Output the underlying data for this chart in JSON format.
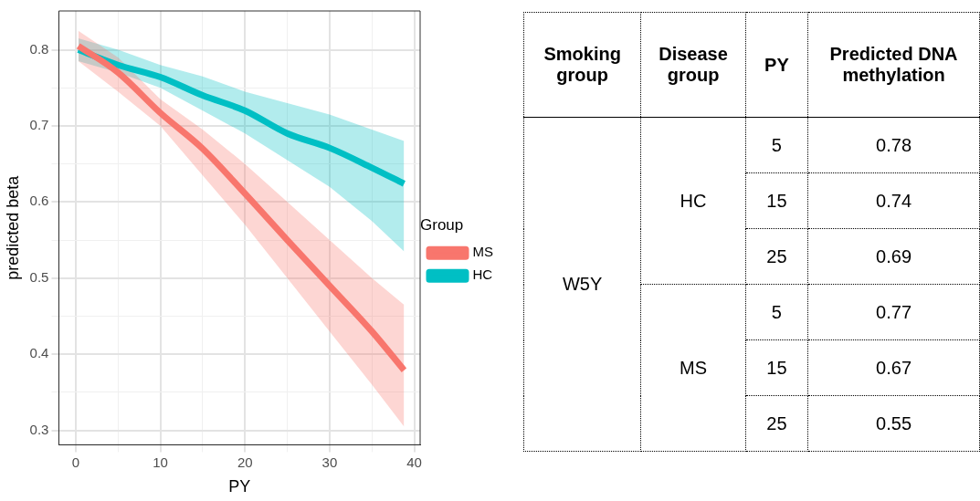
{
  "chart_data": [
    {
      "type": "line",
      "xlabel": "PY",
      "ylabel": "predicted beta",
      "legend_title": "Group",
      "legend": "right",
      "grid": true,
      "marker": "none",
      "line_style": "solid",
      "xlim": [
        -2,
        40.7
      ],
      "xticks": [
        0,
        {
          "value": 5,
          "label": null
        },
        10,
        {
          "value": 15,
          "label": null
        },
        20,
        {
          "value": 25,
          "label": null
        },
        30,
        {
          "value": 35,
          "label": null
        },
        40
      ],
      "ylim": [
        0.281,
        0.851
      ],
      "yticks": [
        0.3,
        {
          "value": 0.35,
          "label": null
        },
        0.4,
        {
          "value": 0.45,
          "label": null
        },
        0.5,
        {
          "value": 0.55,
          "label": null
        },
        0.6,
        {
          "value": 0.65,
          "label": null
        },
        0.7,
        {
          "value": 0.75,
          "label": null
        },
        0.8
      ],
      "series": [
        {
          "name": "MS",
          "color": "#f8766d",
          "x": [
            0.3,
            5,
            10,
            15,
            20,
            25,
            30,
            35,
            38.8
          ],
          "values": [
            0.805,
            0.77,
            0.717,
            0.67,
            0.611,
            0.55,
            0.49,
            0.43,
            0.379
          ],
          "lower": [
            0.785,
            0.745,
            0.7,
            0.635,
            0.57,
            0.5,
            0.43,
            0.36,
            0.305
          ],
          "upper": [
            0.825,
            0.79,
            0.735,
            0.695,
            0.65,
            0.6,
            0.55,
            0.5,
            0.465
          ]
        },
        {
          "name": "HC",
          "color": "#00bfc4",
          "x": [
            0.3,
            5,
            10,
            15,
            20,
            25,
            30,
            35,
            38.8
          ],
          "values": [
            0.8,
            0.78,
            0.764,
            0.74,
            0.72,
            0.69,
            0.671,
            0.645,
            0.624
          ],
          "lower": [
            0.785,
            0.77,
            0.75,
            0.72,
            0.69,
            0.655,
            0.62,
            0.575,
            0.535
          ],
          "upper": [
            0.815,
            0.8,
            0.78,
            0.765,
            0.745,
            0.73,
            0.715,
            0.695,
            0.68
          ]
        }
      ]
    },
    {
      "type": "other",
      "annotations": [
        "Smoking group",
        "Disease group",
        "PY",
        "Predicted DNA methylation",
        "W5Y",
        "HC",
        "5",
        "0.78",
        "15",
        "0.74",
        "25",
        "0.69",
        "MS",
        "5",
        "0.77",
        "15",
        "0.67",
        "25",
        "0.55"
      ]
    }
  ]
}
